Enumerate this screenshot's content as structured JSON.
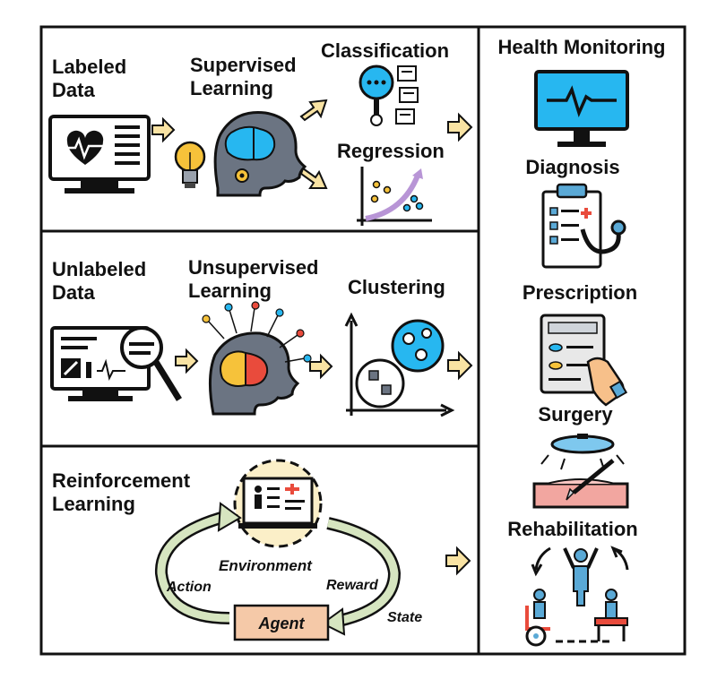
{
  "supervised": {
    "input_label_1": "Labeled",
    "input_label_2": "Data",
    "method_1": "Supervised",
    "method_2": "Learning",
    "task_a": "Classification",
    "task_b": "Regression"
  },
  "unsupervised": {
    "input_label_1": "Unlabeled",
    "input_label_2": "Data",
    "method_1": "Unsupervised",
    "method_2": "Learning",
    "task": "Clustering"
  },
  "reinforcement": {
    "title_1": "Reinforcement",
    "title_2": "Learning",
    "environment": "Environment",
    "action": "Action",
    "reward": "Reward",
    "state": "State",
    "agent": "Agent"
  },
  "health": {
    "title": "Health Monitoring",
    "items": [
      "Diagnosis",
      "Prescription",
      "Surgery",
      "Rehabilitation"
    ]
  },
  "colors": {
    "arrow_fill": "#f9e3a3",
    "screen_blue": "#27b7f0",
    "brain_red": "#e94b3c",
    "brain_yellow": "#f6c23a",
    "agent_fill": "#f5c9a8",
    "cycle_green": "#d6e5c0",
    "env_bg": "#fbefc8",
    "surgery_pink": "#f2a6a0",
    "rehab_blue": "#5aa9d6"
  }
}
